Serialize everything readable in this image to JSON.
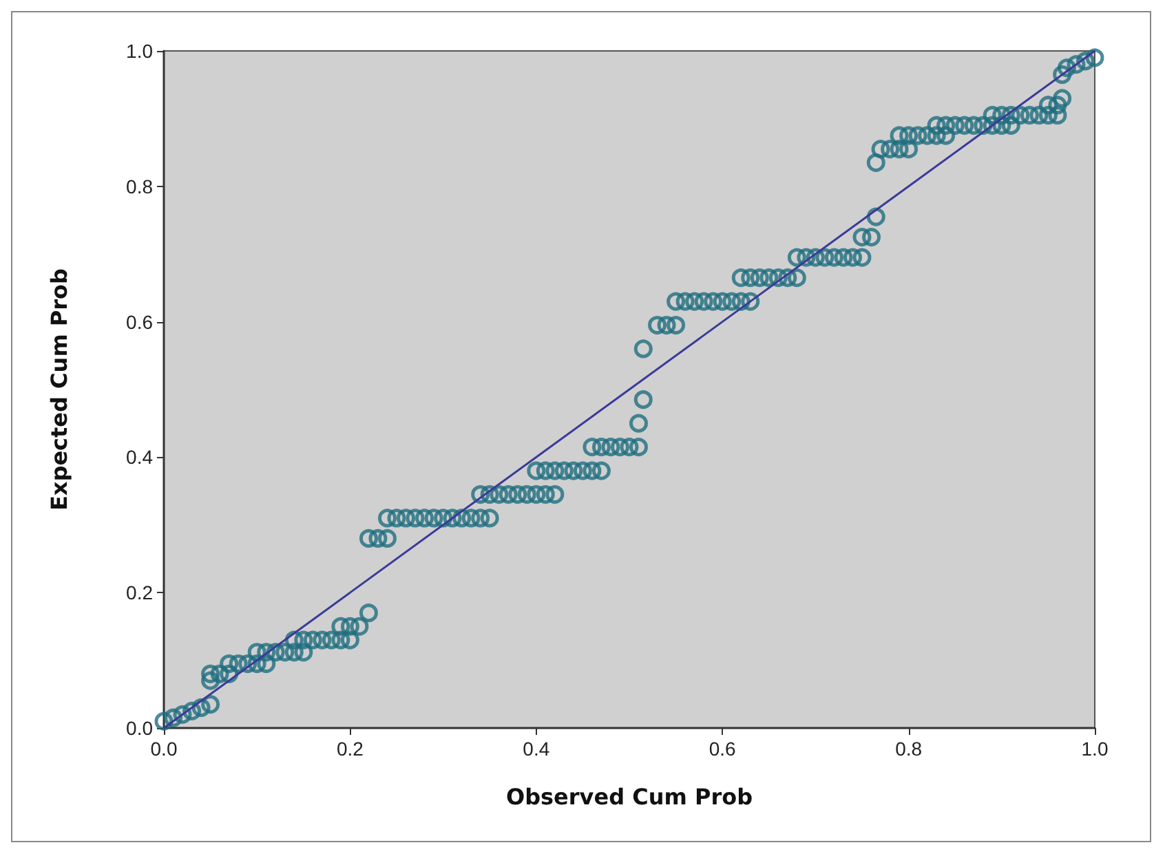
{
  "chart_data": {
    "type": "scatter",
    "xlabel": "Observed Cum Prob",
    "ylabel": "Expected Cum Prob",
    "xlim": [
      0,
      1
    ],
    "ylim": [
      0,
      1
    ],
    "xticks": [
      {
        "value": 0,
        "label": "0.0"
      },
      {
        "value": 0.2,
        "label": "0.2"
      },
      {
        "value": 0.4,
        "label": "0.4"
      },
      {
        "value": 0.6,
        "label": "0.6"
      },
      {
        "value": 0.8,
        "label": "0.8"
      },
      {
        "value": 1,
        "label": "1.0"
      }
    ],
    "yticks": [
      {
        "value": 0,
        "label": "0.0"
      },
      {
        "value": 0.2,
        "label": "0.2"
      },
      {
        "value": 0.4,
        "label": "0.4"
      },
      {
        "value": 0.6,
        "label": "0.6"
      },
      {
        "value": 0.8,
        "label": "0.8"
      },
      {
        "value": 1,
        "label": "1.0"
      }
    ],
    "grid": false,
    "marker": "circle",
    "series": [
      {
        "color": "#1f6e80",
        "x": [
          0,
          0.01,
          0.02,
          0.03,
          0.04,
          0.05,
          0.05,
          0.05,
          0.06,
          0.07,
          0.07,
          0.08,
          0.09,
          0.1,
          0.11,
          0.1,
          0.11,
          0.12,
          0.13,
          0.14,
          0.15,
          0.14,
          0.15,
          0.16,
          0.17,
          0.18,
          0.19,
          0.2,
          0.19,
          0.2,
          0.21,
          0.22,
          0.22,
          0.23,
          0.24,
          0.24,
          0.25,
          0.26,
          0.27,
          0.28,
          0.29,
          0.3,
          0.31,
          0.32,
          0.33,
          0.34,
          0.35,
          0.34,
          0.35,
          0.36,
          0.37,
          0.38,
          0.39,
          0.4,
          0.41,
          0.42,
          0.4,
          0.41,
          0.42,
          0.43,
          0.44,
          0.45,
          0.46,
          0.47,
          0.46,
          0.47,
          0.48,
          0.49,
          0.5,
          0.51,
          0.51,
          0.515,
          0.515,
          0.53,
          0.54,
          0.55,
          0.55,
          0.56,
          0.57,
          0.58,
          0.59,
          0.6,
          0.61,
          0.62,
          0.63,
          0.62,
          0.63,
          0.64,
          0.65,
          0.66,
          0.67,
          0.68,
          0.68,
          0.69,
          0.7,
          0.71,
          0.72,
          0.73,
          0.74,
          0.75,
          0.75,
          0.76,
          0.765,
          0.765,
          0.77,
          0.78,
          0.79,
          0.8,
          0.79,
          0.8,
          0.81,
          0.82,
          0.83,
          0.84,
          0.83,
          0.84,
          0.85,
          0.86,
          0.87,
          0.88,
          0.89,
          0.9,
          0.91,
          0.89,
          0.9,
          0.91,
          0.92,
          0.93,
          0.94,
          0.95,
          0.96,
          0.95,
          0.96,
          0.965,
          0.965,
          0.97,
          0.98,
          0.99,
          1
        ],
        "values": [
          0.01,
          0.015,
          0.02,
          0.025,
          0.03,
          0.035,
          0.07,
          0.08,
          0.08,
          0.08,
          0.095,
          0.095,
          0.095,
          0.095,
          0.095,
          0.112,
          0.112,
          0.112,
          0.112,
          0.112,
          0.112,
          0.13,
          0.13,
          0.13,
          0.13,
          0.13,
          0.13,
          0.13,
          0.15,
          0.15,
          0.15,
          0.17,
          0.28,
          0.28,
          0.28,
          0.31,
          0.31,
          0.31,
          0.31,
          0.31,
          0.31,
          0.31,
          0.31,
          0.31,
          0.31,
          0.31,
          0.31,
          0.345,
          0.345,
          0.345,
          0.345,
          0.345,
          0.345,
          0.345,
          0.345,
          0.345,
          0.38,
          0.38,
          0.38,
          0.38,
          0.38,
          0.38,
          0.38,
          0.38,
          0.415,
          0.415,
          0.415,
          0.415,
          0.415,
          0.415,
          0.45,
          0.485,
          0.56,
          0.595,
          0.595,
          0.595,
          0.63,
          0.63,
          0.63,
          0.63,
          0.63,
          0.63,
          0.63,
          0.63,
          0.63,
          0.665,
          0.665,
          0.665,
          0.665,
          0.665,
          0.665,
          0.665,
          0.695,
          0.695,
          0.695,
          0.695,
          0.695,
          0.695,
          0.695,
          0.695,
          0.725,
          0.725,
          0.755,
          0.835,
          0.855,
          0.855,
          0.855,
          0.855,
          0.875,
          0.875,
          0.875,
          0.875,
          0.875,
          0.875,
          0.89,
          0.89,
          0.89,
          0.89,
          0.89,
          0.89,
          0.89,
          0.89,
          0.89,
          0.905,
          0.905,
          0.905,
          0.905,
          0.905,
          0.905,
          0.905,
          0.905,
          0.92,
          0.92,
          0.93,
          0.965,
          0.975,
          0.98,
          0.985,
          0.99
        ]
      },
      {
        "type": "line",
        "color": "#3a3a99",
        "marker": "none",
        "x": [
          0,
          1
        ],
        "values": [
          0,
          1
        ]
      }
    ]
  }
}
